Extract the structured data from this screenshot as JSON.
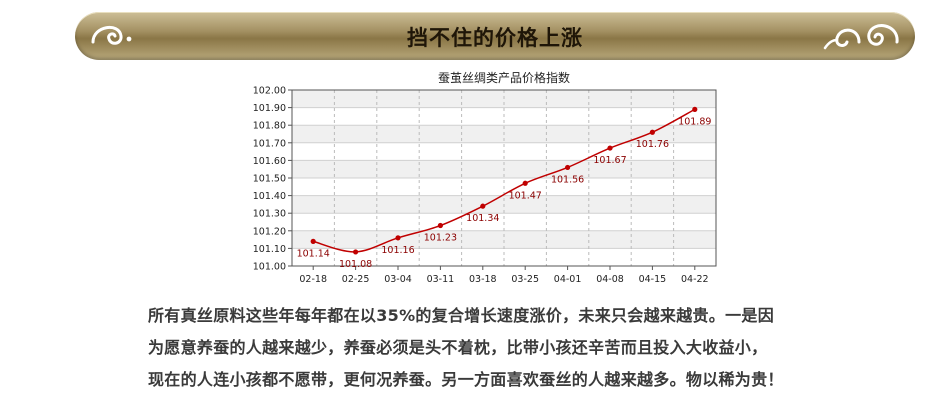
{
  "banner": {
    "title": "挡不住的价格上涨"
  },
  "colors": {
    "banner_gold": "#a39062",
    "line": "#c00000",
    "marker": "#c00000",
    "data_label": "#8b0000",
    "band_a": "#f0f0f0",
    "band_b": "#ffffff"
  },
  "icons": {
    "left": "swirl-ornament-icon",
    "right": "swirl-ornament-icon"
  },
  "chart_data": {
    "type": "line",
    "title": "蚕茧丝绸类产品价格指数",
    "xlabel": "",
    "ylabel": "",
    "categories": [
      "02-18",
      "02-25",
      "03-04",
      "03-11",
      "03-18",
      "03-25",
      "04-01",
      "04-08",
      "04-15",
      "04-22"
    ],
    "series": [
      {
        "values": [
          101.14,
          101.08,
          101.16,
          101.23,
          101.34,
          101.47,
          101.56,
          101.67,
          101.76,
          101.89
        ]
      }
    ],
    "data_labels": [
      "101.14",
      "101.08",
      "101.16",
      "101.23",
      "101.34",
      "101.47",
      "101.56",
      "101.67",
      "101.76",
      "101.89"
    ],
    "ylim": [
      101.0,
      102.0
    ],
    "yticks": [
      "101.00",
      "101.10",
      "101.20",
      "101.30",
      "101.40",
      "101.50",
      "101.60",
      "101.70",
      "101.80",
      "101.90",
      "102.00"
    ],
    "grid": true,
    "legend": "none"
  },
  "paragraph": {
    "lines": [
      "所有真丝原料这些年每年都在以35%的复合增长速度涨价，未来只会越来越贵。一是因",
      "为愿意养蚕的人越来越少，养蚕必须是头不着枕，比带小孩还辛苦而且投入大收益小，",
      "现在的人连小孩都不愿带，更何况养蚕。另一方面喜欢蚕丝的人越来越多。物以稀为贵！"
    ]
  }
}
